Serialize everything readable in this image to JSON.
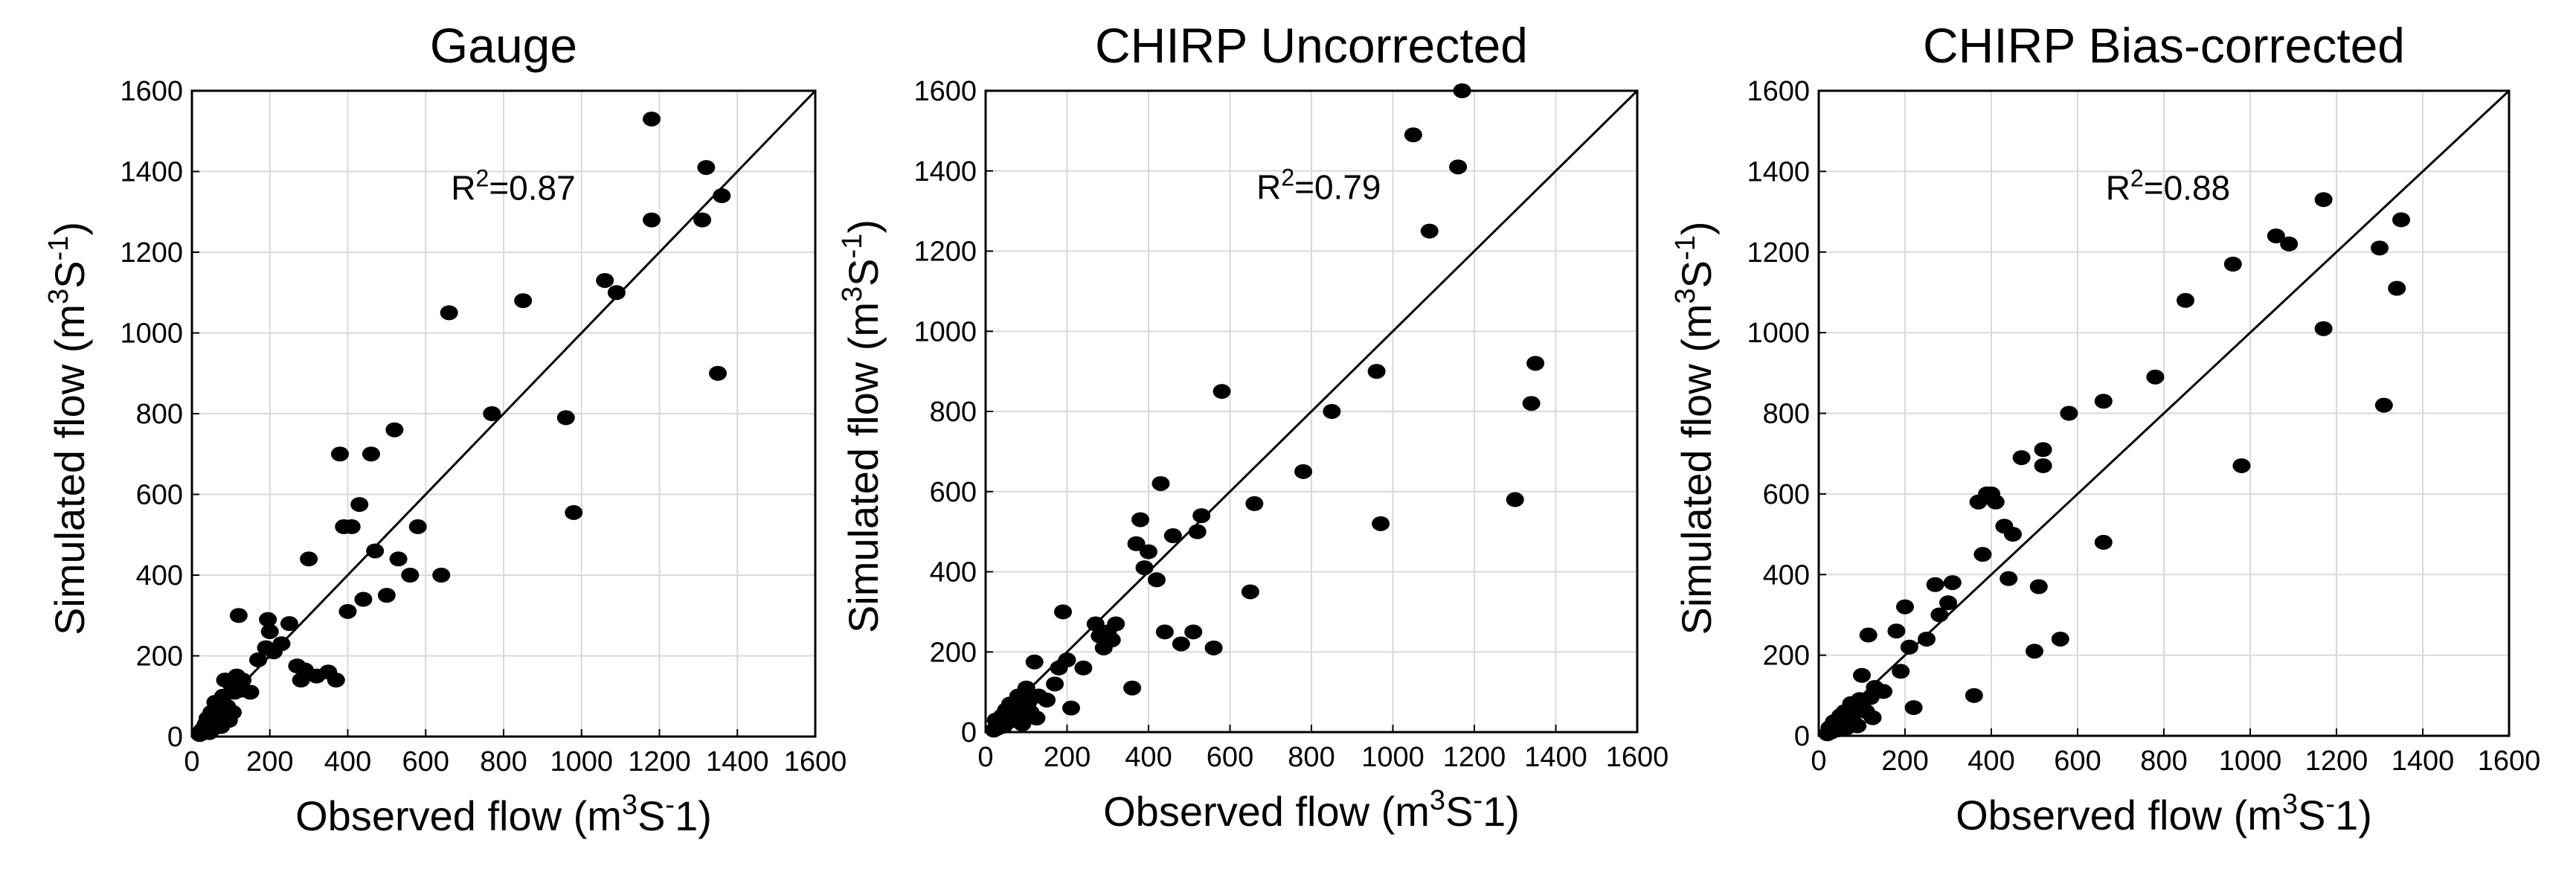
{
  "figure": {
    "background": "#ffffff",
    "marker_color": "#000000",
    "grid_color": "#d9d9d9",
    "line_color": "#000000"
  },
  "chart_data": [
    {
      "type": "scatter",
      "title": "Gauge",
      "xlabel": {
        "text": "Observed flow (m",
        "sup": "3",
        "mid": "S",
        "sup2": "-",
        "end": "1)"
      },
      "ylabel": {
        "text": "Simulated flow (m",
        "sup": "3",
        "mid": "S",
        "sup2": "-1",
        "end": ")"
      },
      "annotation": {
        "base": "R",
        "sup": "2",
        "rest": "=0.87"
      },
      "r2": 0.87,
      "xlim": [
        0,
        1600
      ],
      "ylim": [
        0,
        1600
      ],
      "xticks": [
        "0",
        "200",
        "400",
        "600",
        "800",
        "1000",
        "1200",
        "1400",
        "1600"
      ],
      "yticks": [
        "0",
        "200",
        "400",
        "600",
        "800",
        "1000",
        "1200",
        "1400",
        "1600"
      ],
      "one_to_one_line": true,
      "points": [
        [
          20,
          5
        ],
        [
          25,
          15
        ],
        [
          30,
          20
        ],
        [
          35,
          30
        ],
        [
          40,
          45
        ],
        [
          45,
          10
        ],
        [
          50,
          60
        ],
        [
          55,
          20
        ],
        [
          60,
          85
        ],
        [
          65,
          35
        ],
        [
          70,
          55
        ],
        [
          75,
          25
        ],
        [
          80,
          100
        ],
        [
          85,
          140
        ],
        [
          90,
          75
        ],
        [
          95,
          40
        ],
        [
          100,
          130
        ],
        [
          105,
          60
        ],
        [
          110,
          110
        ],
        [
          115,
          150
        ],
        [
          120,
          300
        ],
        [
          125,
          115
        ],
        [
          130,
          140
        ],
        [
          150,
          110
        ],
        [
          170,
          190
        ],
        [
          190,
          220
        ],
        [
          195,
          290
        ],
        [
          200,
          260
        ],
        [
          210,
          210
        ],
        [
          230,
          230
        ],
        [
          250,
          280
        ],
        [
          270,
          175
        ],
        [
          280,
          140
        ],
        [
          290,
          165
        ],
        [
          300,
          440
        ],
        [
          320,
          150
        ],
        [
          350,
          160
        ],
        [
          370,
          140
        ],
        [
          380,
          700
        ],
        [
          390,
          520
        ],
        [
          400,
          310
        ],
        [
          410,
          520
        ],
        [
          430,
          575
        ],
        [
          440,
          340
        ],
        [
          460,
          700
        ],
        [
          470,
          460
        ],
        [
          500,
          350
        ],
        [
          520,
          760
        ],
        [
          530,
          440
        ],
        [
          560,
          400
        ],
        [
          580,
          520
        ],
        [
          640,
          400
        ],
        [
          660,
          1050
        ],
        [
          770,
          800
        ],
        [
          850,
          1080
        ],
        [
          960,
          790
        ],
        [
          980,
          555
        ],
        [
          1060,
          1130
        ],
        [
          1090,
          1100
        ],
        [
          1180,
          1280
        ],
        [
          1180,
          1530
        ],
        [
          1310,
          1280
        ],
        [
          1320,
          1410
        ],
        [
          1350,
          900
        ],
        [
          1360,
          1340
        ]
      ]
    },
    {
      "type": "scatter",
      "title": "CHIRP Uncorrected",
      "xlabel": {
        "text": "Observed flow (m",
        "sup": "3",
        "mid": "S",
        "sup2": "-",
        "end": "1)"
      },
      "ylabel": {
        "text": "Simulated flow (m",
        "sup": "3",
        "mid": "S",
        "sup2": "-1",
        "end": ")"
      },
      "annotation": {
        "base": "R",
        "sup": "2",
        "rest": "=0.79"
      },
      "r2": 0.79,
      "xlim": [
        0,
        1600
      ],
      "ylim": [
        0,
        1600
      ],
      "xticks": [
        "0",
        "200",
        "400",
        "600",
        "800",
        "1000",
        "1200",
        "1400",
        "1600"
      ],
      "yticks": [
        "0",
        "200",
        "400",
        "600",
        "800",
        "1000",
        "1200",
        "1400",
        "1600"
      ],
      "one_to_one_line": true,
      "points": [
        [
          20,
          5
        ],
        [
          25,
          30
        ],
        [
          30,
          10
        ],
        [
          35,
          20
        ],
        [
          40,
          40
        ],
        [
          45,
          15
        ],
        [
          50,
          55
        ],
        [
          55,
          25
        ],
        [
          60,
          70
        ],
        [
          65,
          35
        ],
        [
          70,
          30
        ],
        [
          75,
          50
        ],
        [
          80,
          90
        ],
        [
          85,
          60
        ],
        [
          90,
          20
        ],
        [
          95,
          40
        ],
        [
          100,
          110
        ],
        [
          105,
          75
        ],
        [
          110,
          50
        ],
        [
          120,
          175
        ],
        [
          125,
          35
        ],
        [
          130,
          90
        ],
        [
          150,
          80
        ],
        [
          170,
          120
        ],
        [
          180,
          160
        ],
        [
          190,
          300
        ],
        [
          200,
          180
        ],
        [
          210,
          60
        ],
        [
          240,
          160
        ],
        [
          270,
          270
        ],
        [
          280,
          240
        ],
        [
          290,
          210
        ],
        [
          300,
          250
        ],
        [
          310,
          230
        ],
        [
          320,
          270
        ],
        [
          360,
          110
        ],
        [
          370,
          470
        ],
        [
          380,
          530
        ],
        [
          390,
          410
        ],
        [
          400,
          450
        ],
        [
          420,
          380
        ],
        [
          430,
          620
        ],
        [
          440,
          250
        ],
        [
          460,
          490
        ],
        [
          480,
          220
        ],
        [
          510,
          250
        ],
        [
          520,
          500
        ],
        [
          530,
          540
        ],
        [
          560,
          210
        ],
        [
          580,
          850
        ],
        [
          660,
          570
        ],
        [
          650,
          350
        ],
        [
          780,
          650
        ],
        [
          850,
          800
        ],
        [
          960,
          900
        ],
        [
          970,
          520
        ],
        [
          1050,
          1490
        ],
        [
          1090,
          1250
        ],
        [
          1160,
          1410
        ],
        [
          1170,
          1600
        ],
        [
          1300,
          580
        ],
        [
          1340,
          820
        ],
        [
          1350,
          920
        ]
      ]
    },
    {
      "type": "scatter",
      "title": "CHIRP Bias-corrected",
      "xlabel": {
        "text": "Observed flow (m",
        "sup": "3",
        "mid": "S",
        "sup2": "-",
        "end": "1)"
      },
      "ylabel": {
        "text": "Simulated flow (m",
        "sup": "3",
        "mid": "S",
        "sup2": "-1",
        "end": ")"
      },
      "annotation": {
        "base": "R",
        "sup": "2",
        "rest": "=0.88"
      },
      "r2": 0.88,
      "xlim": [
        0,
        1600
      ],
      "ylim": [
        0,
        1600
      ],
      "xticks": [
        "0",
        "200",
        "400",
        "600",
        "800",
        "1000",
        "1200",
        "1400",
        "1600"
      ],
      "yticks": [
        "0",
        "200",
        "400",
        "600",
        "800",
        "1000",
        "1200",
        "1400",
        "1600"
      ],
      "one_to_one_line": true,
      "points": [
        [
          20,
          5
        ],
        [
          25,
          20
        ],
        [
          30,
          10
        ],
        [
          35,
          35
        ],
        [
          40,
          25
        ],
        [
          45,
          15
        ],
        [
          50,
          50
        ],
        [
          55,
          30
        ],
        [
          60,
          60
        ],
        [
          65,
          20
        ],
        [
          70,
          40
        ],
        [
          75,
          80
        ],
        [
          80,
          35
        ],
        [
          85,
          65
        ],
        [
          90,
          25
        ],
        [
          95,
          90
        ],
        [
          100,
          150
        ],
        [
          110,
          60
        ],
        [
          115,
          250
        ],
        [
          120,
          95
        ],
        [
          125,
          45
        ],
        [
          130,
          120
        ],
        [
          150,
          110
        ],
        [
          180,
          260
        ],
        [
          190,
          160
        ],
        [
          200,
          320
        ],
        [
          210,
          220
        ],
        [
          220,
          70
        ],
        [
          250,
          240
        ],
        [
          270,
          375
        ],
        [
          280,
          300
        ],
        [
          300,
          330
        ],
        [
          310,
          380
        ],
        [
          360,
          100
        ],
        [
          370,
          580
        ],
        [
          380,
          450
        ],
        [
          390,
          600
        ],
        [
          400,
          600
        ],
        [
          410,
          580
        ],
        [
          430,
          520
        ],
        [
          440,
          390
        ],
        [
          450,
          500
        ],
        [
          470,
          690
        ],
        [
          500,
          210
        ],
        [
          510,
          370
        ],
        [
          520,
          710
        ],
        [
          520,
          670
        ],
        [
          560,
          240
        ],
        [
          580,
          800
        ],
        [
          660,
          830
        ],
        [
          660,
          480
        ],
        [
          780,
          890
        ],
        [
          850,
          1080
        ],
        [
          960,
          1170
        ],
        [
          980,
          670
        ],
        [
          1060,
          1240
        ],
        [
          1090,
          1220
        ],
        [
          1170,
          1330
        ],
        [
          1170,
          1010
        ],
        [
          1300,
          1210
        ],
        [
          1310,
          820
        ],
        [
          1340,
          1110
        ],
        [
          1350,
          1280
        ]
      ]
    }
  ]
}
